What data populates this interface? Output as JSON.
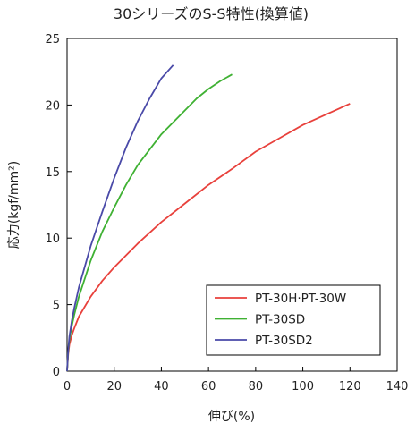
{
  "chart_data": {
    "type": "line",
    "title": "30シリーズのS-S特性(換算値)",
    "xlabel": "伸び(%)",
    "ylabel": "応力(kgf/mm²)",
    "xlim": [
      0,
      140
    ],
    "ylim": [
      0,
      25
    ],
    "x_ticks": [
      "0",
      "20",
      "40",
      "60",
      "80",
      "100",
      "120",
      "140"
    ],
    "y_ticks": [
      "0",
      "5",
      "10",
      "15",
      "20",
      "25"
    ],
    "grid": false,
    "legend_position": "bottom-right",
    "series": [
      {
        "name": "PT-30H·PT-30W",
        "color": "#e8413c",
        "x": [
          0,
          0.5,
          1,
          2,
          3,
          5,
          10,
          15,
          20,
          30,
          40,
          50,
          60,
          70,
          80,
          90,
          100,
          110,
          120
        ],
        "y": [
          0,
          1.3,
          2.0,
          2.7,
          3.2,
          4.1,
          5.6,
          6.8,
          7.8,
          9.6,
          11.2,
          12.6,
          14.0,
          15.2,
          16.5,
          17.5,
          18.5,
          19.3,
          20.1
        ]
      },
      {
        "name": "PT-30SD",
        "color": "#3fb133",
        "x": [
          0,
          0.5,
          1,
          2,
          3,
          5,
          10,
          15,
          20,
          25,
          30,
          40,
          50,
          55,
          60,
          65,
          70
        ],
        "y": [
          0,
          1.5,
          2.4,
          3.4,
          4.2,
          5.6,
          8.3,
          10.5,
          12.3,
          14.0,
          15.5,
          17.8,
          19.6,
          20.5,
          21.2,
          21.8,
          22.3
        ]
      },
      {
        "name": "PT-30SD2",
        "color": "#4a4aa8",
        "x": [
          0,
          0.5,
          1,
          2,
          3,
          5,
          10,
          15,
          20,
          25,
          30,
          35,
          40,
          45
        ],
        "y": [
          0,
          1.6,
          2.6,
          3.8,
          4.7,
          6.3,
          9.4,
          12.0,
          14.5,
          16.8,
          18.8,
          20.5,
          22.0,
          23.0
        ]
      }
    ]
  }
}
